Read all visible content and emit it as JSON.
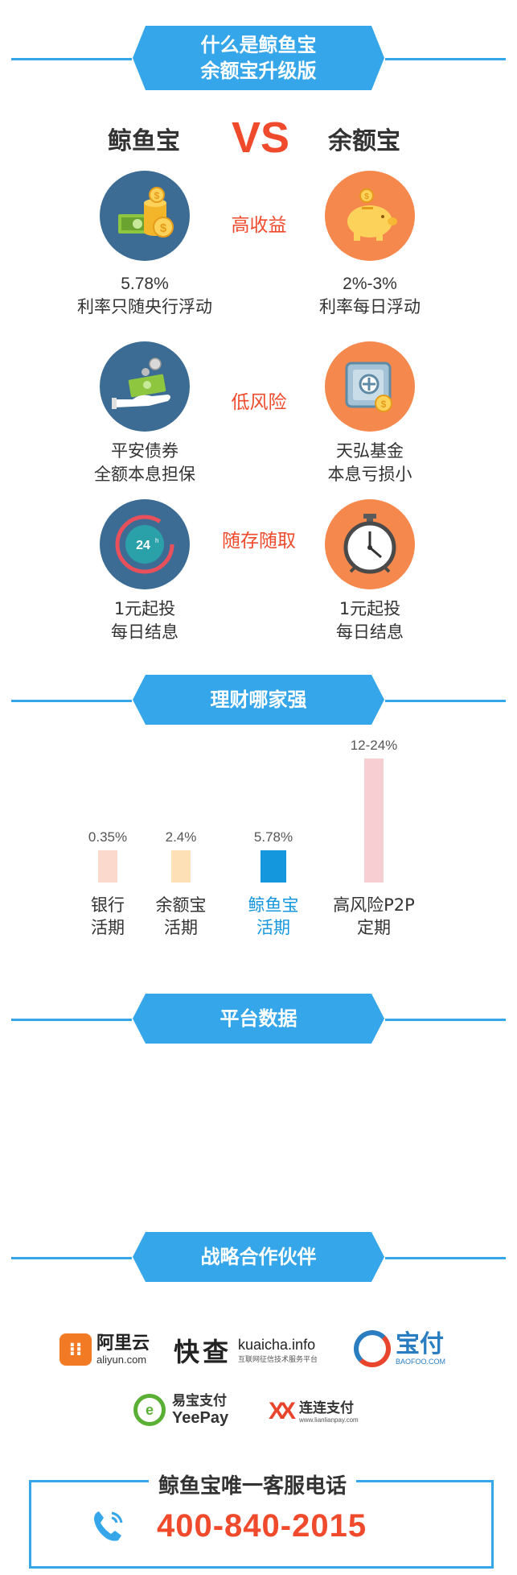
{
  "sections": {
    "what": {
      "line1": "什么是鲸鱼宝",
      "line2": "余额宝升级版"
    },
    "who_strong": "理财哪家强",
    "platform": "平台数据",
    "partners": "战略合作伙伴"
  },
  "compare": {
    "left_name": "鲸鱼宝",
    "vs": "VS",
    "right_name": "余额宝",
    "rows": [
      {
        "label": "高收益",
        "left_line1": "5.78%",
        "left_line2": "利率只随央行浮动",
        "right_line1": "2%-3%",
        "right_line2": "利率每日浮动",
        "left_icon": "money-coins-icon",
        "right_icon": "piggy-bank-icon"
      },
      {
        "label": "低风险",
        "left_line1": "平安债券",
        "left_line2": "全额本息担保",
        "right_line1": "天弘基金",
        "right_line2": "本息亏损小",
        "left_icon": "hand-money-icon",
        "right_icon": "safe-icon"
      },
      {
        "label": "随存随取",
        "left_line1": "1元起投",
        "left_line2": "每日结息",
        "right_line1": "1元起投",
        "right_line2": "每日结息",
        "left_icon": "24h-clock-icon",
        "right_icon": "alarm-clock-icon"
      }
    ]
  },
  "chart_data": {
    "type": "bar",
    "categories": [
      "银行活期",
      "余额宝活期",
      "鲸鱼宝活期",
      "高风险P2P定期"
    ],
    "labels": [
      [
        "银行",
        "活期"
      ],
      [
        "余额宝",
        "活期"
      ],
      [
        "鲸鱼宝",
        "活期"
      ],
      [
        "高风险P2P",
        "定期"
      ]
    ],
    "value_labels": [
      "0.35%",
      "2.4%",
      "5.78%",
      "12-24%"
    ],
    "values": [
      0.35,
      2.4,
      5.78,
      24
    ],
    "colors": [
      "#fbd9cc",
      "#fde0b6",
      "#1597de",
      "#f7cfd2"
    ],
    "highlight_index": 2,
    "highlight_color": "#1597de"
  },
  "partners": [
    {
      "name": "阿里云",
      "sub": "aliyun.com",
      "color": "#f37a24"
    },
    {
      "name": "快查",
      "sub": "kuaicha.info",
      "sub2": "互联网征信技术服务平台",
      "color": "#222222"
    },
    {
      "name": "宝付",
      "sub": "BAOFOO.COM",
      "color": "#2a7dc0"
    },
    {
      "name": "易宝支付",
      "sub": "YeePay",
      "color": "#333333"
    },
    {
      "name": "连连支付",
      "sub": "www.lianlianpay.com",
      "color": "#333333"
    }
  ],
  "contact": {
    "title": "鲸鱼宝唯一客服电话",
    "phone": "400-840-2015"
  },
  "colors": {
    "accent": "#35a6e9",
    "red": "#f04a2c",
    "blue_circle": "#3c6c93",
    "orange_circle": "#f5884c"
  }
}
